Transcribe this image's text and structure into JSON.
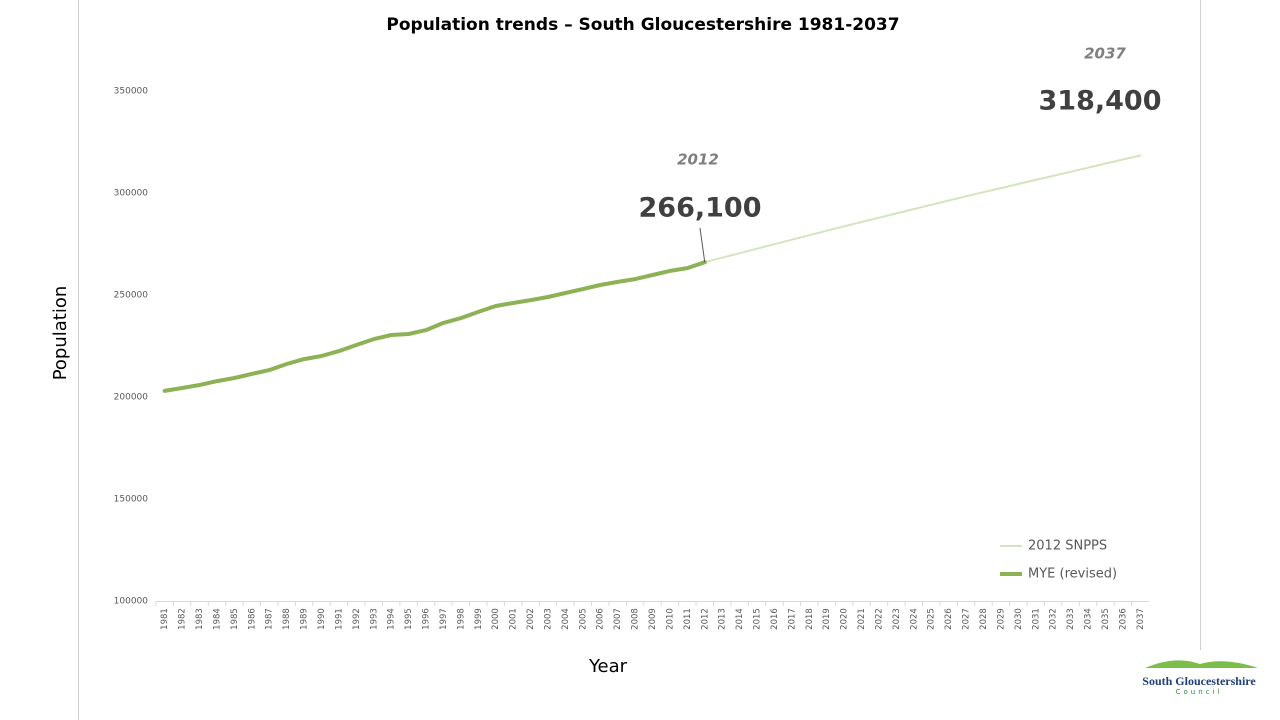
{
  "chart_data": {
    "type": "line",
    "title": "Population trends – South Gloucestershire 1981-2037",
    "x_label": "Year",
    "y_label": "Population",
    "categories": [
      "1981",
      "1982",
      "1983",
      "1984",
      "1985",
      "1986",
      "1987",
      "1988",
      "1989",
      "1990",
      "1991",
      "1992",
      "1993",
      "1994",
      "1995",
      "1996",
      "1997",
      "1998",
      "1999",
      "2000",
      "2001",
      "2002",
      "2003",
      "2004",
      "2005",
      "2006",
      "2007",
      "2008",
      "2009",
      "2010",
      "2011",
      "2012",
      "2013",
      "2014",
      "2015",
      "2016",
      "2017",
      "2018",
      "2019",
      "2020",
      "2021",
      "2022",
      "2023",
      "2024",
      "2025",
      "2026",
      "2027",
      "2028",
      "2029",
      "2030",
      "2031",
      "2032",
      "2033",
      "2034",
      "2035",
      "2036",
      "2037"
    ],
    "series": [
      {
        "name": "2012 SNPPS",
        "color": "#d4e4bd",
        "width": 2,
        "values": [
          null,
          null,
          null,
          null,
          null,
          null,
          null,
          null,
          null,
          null,
          null,
          null,
          null,
          null,
          null,
          null,
          null,
          null,
          null,
          null,
          null,
          null,
          null,
          null,
          null,
          null,
          null,
          null,
          null,
          null,
          null,
          266100,
          268300,
          270500,
          272700,
          274900,
          277100,
          279300,
          281500,
          283700,
          285800,
          287900,
          290000,
          292100,
          294200,
          296300,
          298400,
          300400,
          302400,
          304400,
          306400,
          308400,
          310400,
          312400,
          314400,
          316400,
          318400
        ]
      },
      {
        "name": "MYE (revised)",
        "color": "#8db255",
        "width": 4,
        "values": [
          203000,
          204400,
          205900,
          207800,
          209300,
          211300,
          213200,
          216200,
          218600,
          220100,
          222500,
          225500,
          228400,
          230400,
          230900,
          232800,
          236300,
          238700,
          241700,
          244600,
          246100,
          247500,
          249000,
          251000,
          252900,
          254900,
          256400,
          257800,
          259800,
          261800,
          263200,
          266100,
          null,
          null,
          null,
          null,
          null,
          null,
          null,
          null,
          null,
          null,
          null,
          null,
          null,
          null,
          null,
          null,
          null,
          null,
          null,
          null,
          null,
          null,
          null,
          null,
          null
        ]
      }
    ],
    "ylim": [
      100000,
      350000
    ],
    "yticks": [
      100000,
      150000,
      200000,
      250000,
      300000,
      350000
    ],
    "grid": false,
    "legend": "lower right",
    "annotations": [
      {
        "year": "2012",
        "value_label": "266,100"
      },
      {
        "year": "2037",
        "value_label": "318,400"
      }
    ]
  },
  "logo": {
    "name": "South Gloucestershire",
    "subtitle": "Council"
  }
}
